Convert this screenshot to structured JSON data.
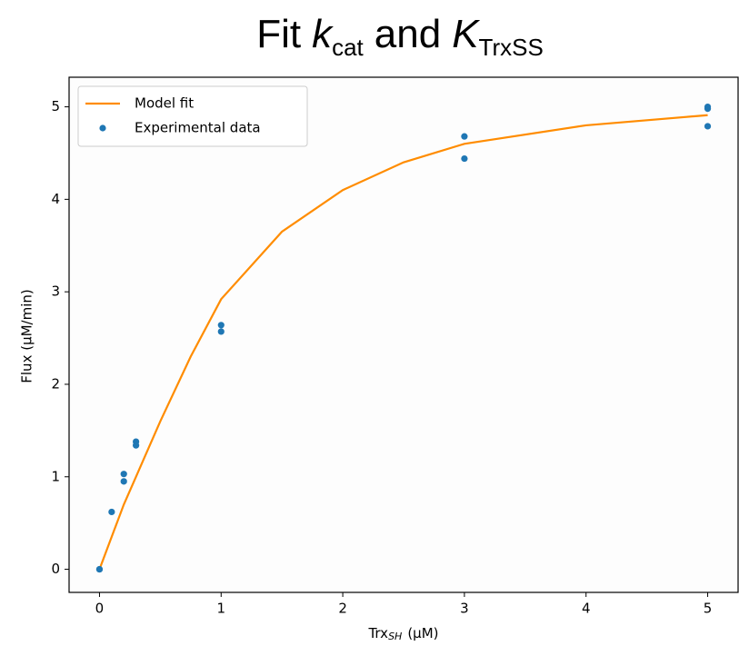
{
  "chart_data": {
    "type": "line",
    "title": [
      "Fit",
      "k",
      "cat",
      "and",
      "K",
      "TrxSS"
    ],
    "x_label": [
      "Trx",
      "SH",
      "(μM)"
    ],
    "y_label": "Flux (μM/min)",
    "xlim": [
      -0.25,
      5.25
    ],
    "ylim": [
      -0.25,
      5.32
    ],
    "xticks": [
      0,
      1,
      2,
      3,
      4,
      5
    ],
    "yticks": [
      0,
      1,
      2,
      3,
      4,
      5
    ],
    "legend": "upper left",
    "series": [
      {
        "name": "Model fit",
        "type": "line",
        "color": "#ff8c00",
        "x": [
          0,
          0.1,
          0.2,
          0.3,
          0.5,
          0.75,
          1,
          1.5,
          2,
          2.5,
          3,
          4,
          5
        ],
        "values": [
          0,
          0.35,
          0.7,
          1.0,
          1.6,
          2.3,
          2.92,
          3.65,
          4.1,
          4.4,
          4.6,
          4.8,
          4.91
        ]
      },
      {
        "name": "Experimental data",
        "type": "scatter",
        "color": "#1f77b4",
        "x": [
          0,
          0,
          0.1,
          0.2,
          0.2,
          0.3,
          0.3,
          1,
          1,
          3,
          3,
          5,
          5,
          5
        ],
        "values": [
          0,
          0,
          0.62,
          1.03,
          0.95,
          1.38,
          1.34,
          2.64,
          2.57,
          4.68,
          4.44,
          5.0,
          4.98,
          4.79
        ]
      }
    ]
  }
}
